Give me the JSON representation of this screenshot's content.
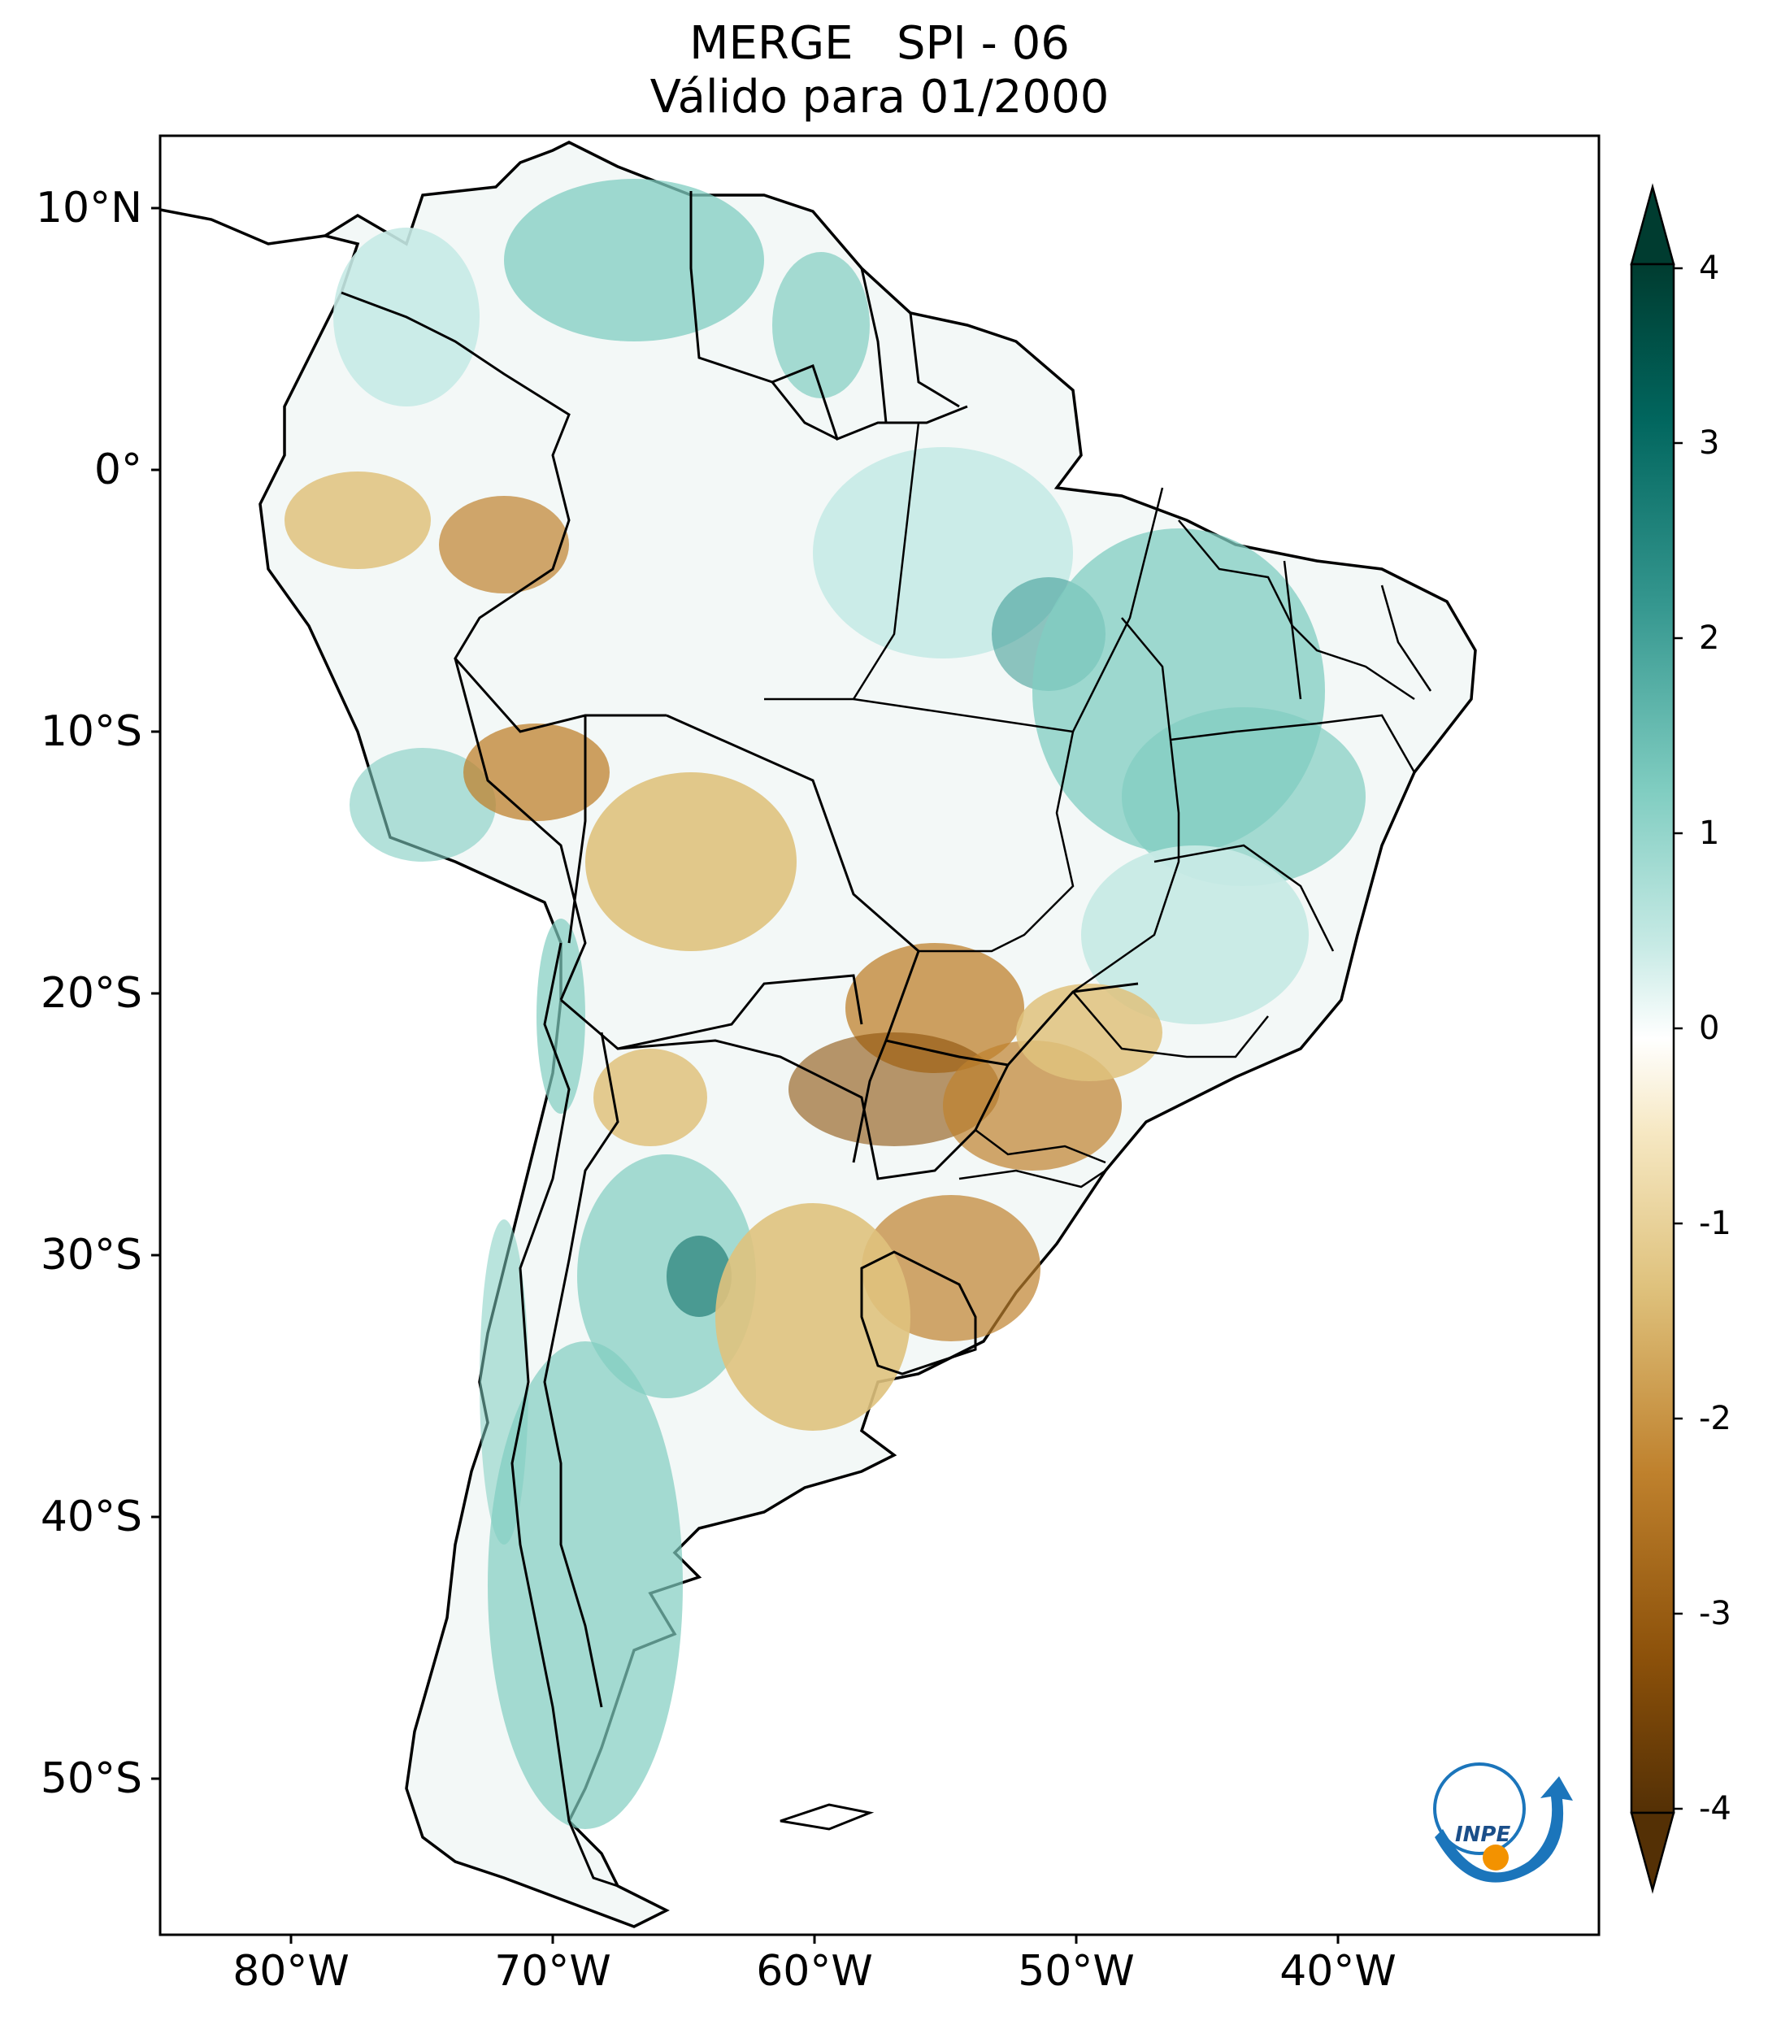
{
  "title": {
    "line1": "MERGE   SPI - 06",
    "line2": "Válido para 01/2000"
  },
  "latitude_labels": [
    "10°N",
    "0°",
    "10°S",
    "20°S",
    "30°S",
    "40°S",
    "50°S"
  ],
  "latitude_values": [
    10,
    0,
    -10,
    -20,
    -30,
    -40,
    -50
  ],
  "longitude_labels": [
    "80°W",
    "70°W",
    "60°W",
    "50°W",
    "40°W"
  ],
  "longitude_values": [
    -80,
    -70,
    -60,
    -50,
    -40
  ],
  "map_extent": {
    "lon": [
      -85,
      -30
    ],
    "lat": [
      -56,
      13
    ]
  },
  "colorbar": {
    "tick_labels": [
      "4",
      "3",
      "2",
      "1",
      "0",
      "-1",
      "-2",
      "-3",
      "-4"
    ],
    "tick_values": [
      4,
      3,
      2,
      1,
      0,
      -1,
      -2,
      -3,
      -4
    ],
    "range": [
      -4,
      4
    ],
    "colors": [
      "#543005",
      "#8c510a",
      "#bf812d",
      "#dfc27d",
      "#f6e8c3",
      "#ffffff",
      "#c7eae5",
      "#80cdc1",
      "#35978f",
      "#01665e",
      "#003c30"
    ]
  },
  "logo": {
    "text": "INPE",
    "blue": "#1b75bb",
    "orange": "#f39200"
  }
}
